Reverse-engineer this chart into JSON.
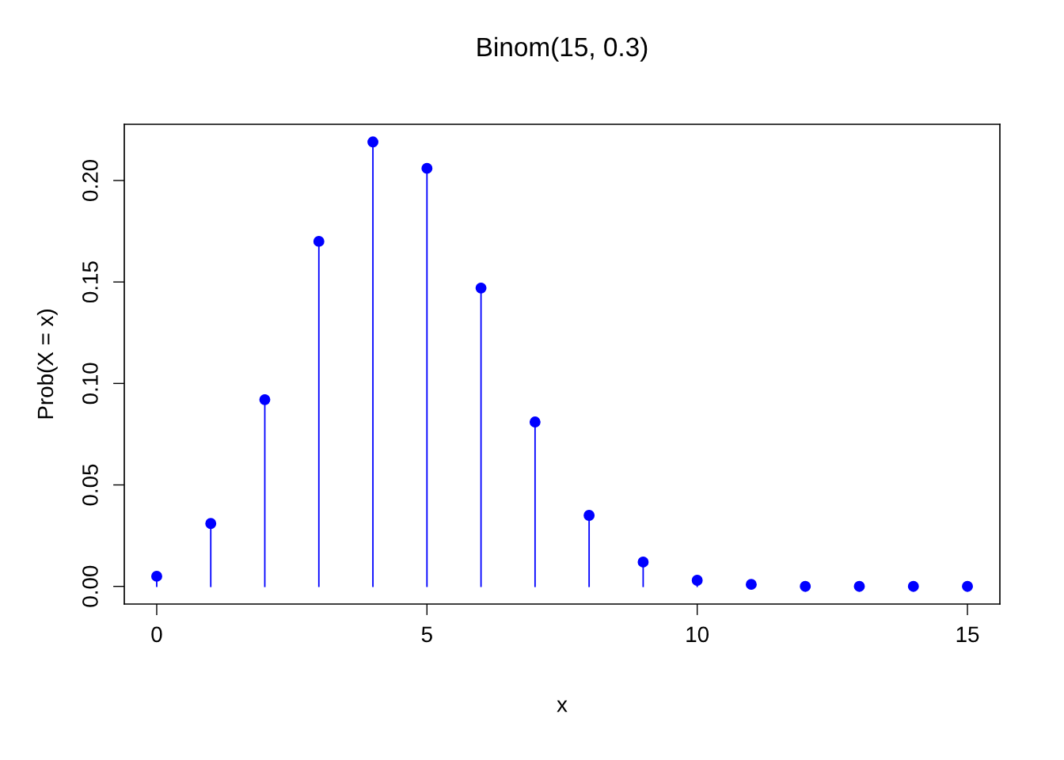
{
  "chart_data": {
    "type": "lollipop",
    "title": "Binom(15, 0.3)",
    "xlabel": "x",
    "ylabel": "Prob(X = x)",
    "x": [
      0,
      1,
      2,
      3,
      4,
      5,
      6,
      7,
      8,
      9,
      10,
      11,
      12,
      13,
      14,
      15
    ],
    "values": [
      0.005,
      0.031,
      0.092,
      0.17,
      0.219,
      0.206,
      0.147,
      0.081,
      0.035,
      0.012,
      0.003,
      0.001,
      0,
      0,
      0,
      0
    ],
    "color": "#0000ff",
    "marker": "circle",
    "grid": false,
    "legend": false,
    "xlim": [
      -0.6,
      15.6
    ],
    "xticks": [
      0,
      5,
      10,
      15
    ],
    "ylim": [
      -0.0087,
      0.2277
    ],
    "yticks": [
      {
        "value": 0,
        "label": "0.00"
      },
      {
        "value": 0.05,
        "label": "0.05"
      },
      {
        "value": 0.1,
        "label": "0.10"
      },
      {
        "value": 0.15,
        "label": "0.15"
      },
      {
        "value": 0.2,
        "label": "0.20"
      }
    ]
  }
}
